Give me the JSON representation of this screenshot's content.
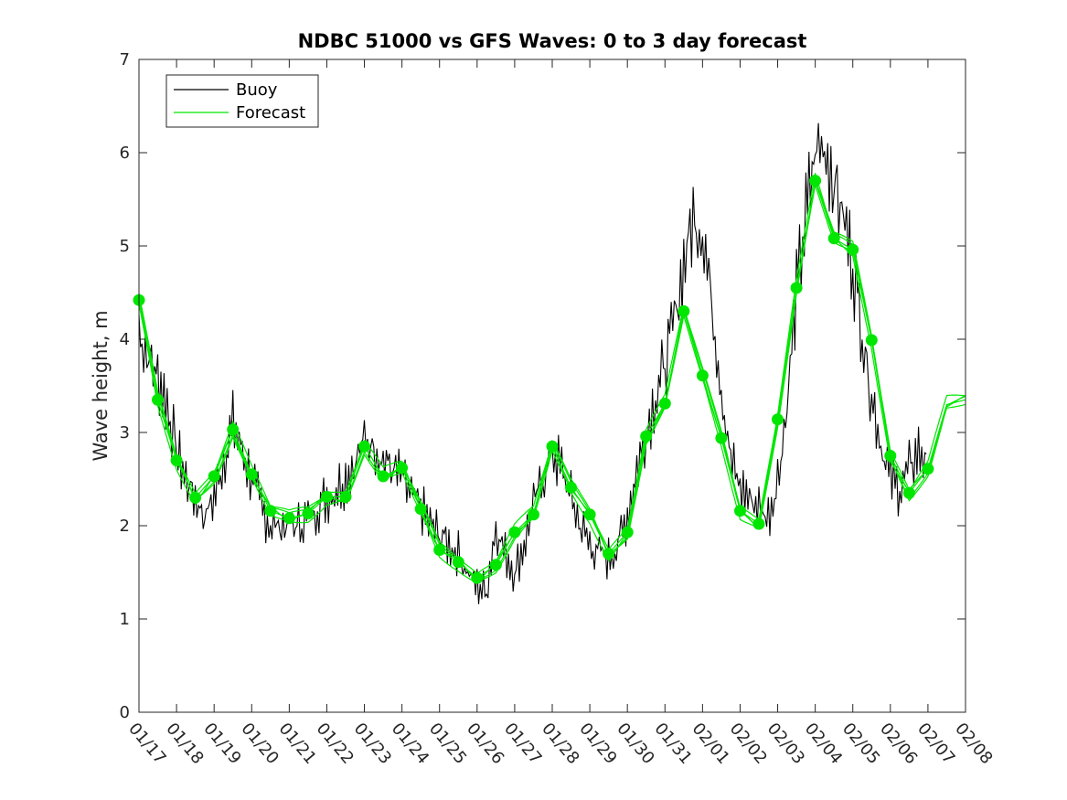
{
  "chart_data": {
    "type": "line",
    "title": "NDBC 51000 vs GFS Waves: 0 to 3 day forecast",
    "xlabel": "",
    "ylabel": "Wave height, m",
    "x_ticks": [
      "01/17",
      "01/18",
      "01/19",
      "01/20",
      "01/21",
      "01/22",
      "01/23",
      "01/24",
      "01/25",
      "01/26",
      "01/27",
      "01/28",
      "01/29",
      "01/30",
      "01/31",
      "02/01",
      "02/02",
      "02/03",
      "02/04",
      "02/05",
      "02/06",
      "02/07",
      "02/08"
    ],
    "xlim": [
      0,
      22
    ],
    "ylim": [
      0,
      7
    ],
    "y_ticks": [
      0,
      1,
      2,
      3,
      4,
      5,
      6,
      7
    ],
    "x_units": "days since 01/17",
    "legend": {
      "position": "top-left",
      "entries": [
        "Buoy",
        "Forecast"
      ]
    },
    "colors": {
      "buoy": "#000000",
      "forecast": "#00e600"
    },
    "series": [
      {
        "name": "Buoy",
        "points": [
          [
            0,
            4.1
          ],
          [
            0.25,
            3.8
          ],
          [
            0.5,
            3.6
          ],
          [
            0.75,
            3.3
          ],
          [
            1,
            2.8
          ],
          [
            1.25,
            2.5
          ],
          [
            1.5,
            2.3
          ],
          [
            1.75,
            2.1
          ],
          [
            2,
            2.3
          ],
          [
            2.25,
            2.7
          ],
          [
            2.5,
            3.1
          ],
          [
            2.75,
            2.8
          ],
          [
            3,
            2.5
          ],
          [
            3.25,
            2.2
          ],
          [
            3.5,
            2.0
          ],
          [
            3.75,
            2.0
          ],
          [
            4,
            2.0
          ],
          [
            4.25,
            2.0
          ],
          [
            4.5,
            2.1
          ],
          [
            4.75,
            2.2
          ],
          [
            5,
            2.3
          ],
          [
            5.25,
            2.4
          ],
          [
            5.5,
            2.5
          ],
          [
            5.75,
            2.7
          ],
          [
            6,
            2.9
          ],
          [
            6.25,
            2.9
          ],
          [
            6.5,
            2.7
          ],
          [
            6.75,
            2.6
          ],
          [
            7,
            2.5
          ],
          [
            7.25,
            2.3
          ],
          [
            7.5,
            2.2
          ],
          [
            7.75,
            2.0
          ],
          [
            8,
            1.9
          ],
          [
            8.25,
            1.8
          ],
          [
            8.5,
            1.7
          ],
          [
            8.75,
            1.5
          ],
          [
            9,
            1.35
          ],
          [
            9.25,
            1.3
          ],
          [
            9.5,
            2.0
          ],
          [
            9.75,
            1.7
          ],
          [
            10,
            1.5
          ],
          [
            10.25,
            1.8
          ],
          [
            10.5,
            2.2
          ],
          [
            10.75,
            2.5
          ],
          [
            11,
            2.8
          ],
          [
            11.25,
            2.6
          ],
          [
            11.5,
            2.3
          ],
          [
            11.75,
            2.0
          ],
          [
            12,
            1.8
          ],
          [
            12.25,
            1.7
          ],
          [
            12.5,
            1.65
          ],
          [
            12.75,
            1.8
          ],
          [
            13,
            2.1
          ],
          [
            13.25,
            2.6
          ],
          [
            13.5,
            3.0
          ],
          [
            13.75,
            3.4
          ],
          [
            14,
            3.7
          ],
          [
            14.25,
            4.2
          ],
          [
            14.5,
            4.8
          ],
          [
            14.75,
            5.3
          ],
          [
            15,
            5.2
          ],
          [
            15.25,
            4.4
          ],
          [
            15.5,
            3.5
          ],
          [
            15.75,
            2.7
          ],
          [
            16,
            2.4
          ],
          [
            16.25,
            2.3
          ],
          [
            16.5,
            2.2
          ],
          [
            16.75,
            2.1
          ],
          [
            17,
            2.5
          ],
          [
            17.25,
            3.3
          ],
          [
            17.5,
            4.5
          ],
          [
            17.75,
            5.3
          ],
          [
            18,
            6.0
          ],
          [
            18.25,
            6.1
          ],
          [
            18.5,
            5.7
          ],
          [
            18.75,
            5.3
          ],
          [
            19,
            4.8
          ],
          [
            19.25,
            4.1
          ],
          [
            19.5,
            3.4
          ],
          [
            19.75,
            2.9
          ],
          [
            20,
            2.5
          ],
          [
            20.25,
            2.4
          ],
          [
            20.5,
            2.6
          ],
          [
            20.75,
            2.8
          ],
          [
            21,
            2.7
          ]
        ]
      },
      {
        "name": "Forecast",
        "points": [
          [
            0,
            4.42
          ],
          [
            0.5,
            3.35
          ],
          [
            1,
            2.7
          ],
          [
            1.5,
            2.3
          ],
          [
            2,
            2.53
          ],
          [
            2.5,
            3.03
          ],
          [
            3,
            2.55
          ],
          [
            3.5,
            2.16
          ],
          [
            4,
            2.08
          ],
          [
            4.5,
            2.13
          ],
          [
            5,
            2.31
          ],
          [
            5.5,
            2.31
          ],
          [
            6,
            2.85
          ],
          [
            6.5,
            2.53
          ],
          [
            7,
            2.62
          ],
          [
            7.5,
            2.18
          ],
          [
            8,
            1.74
          ],
          [
            8.5,
            1.61
          ],
          [
            9,
            1.44
          ],
          [
            9.5,
            1.58
          ],
          [
            10,
            1.93
          ],
          [
            10.5,
            2.12
          ],
          [
            11,
            2.85
          ],
          [
            11.5,
            2.41
          ],
          [
            12,
            2.12
          ],
          [
            12.5,
            1.7
          ],
          [
            13,
            1.93
          ],
          [
            13.5,
            2.96
          ],
          [
            14,
            3.31
          ],
          [
            14.5,
            4.3
          ],
          [
            15,
            3.61
          ],
          [
            15.5,
            2.94
          ],
          [
            16,
            2.16
          ],
          [
            16.5,
            2.02
          ],
          [
            17,
            3.14
          ],
          [
            17.5,
            4.55
          ],
          [
            18,
            5.7
          ],
          [
            18.5,
            5.08
          ],
          [
            19,
            4.96
          ],
          [
            19.5,
            3.99
          ],
          [
            20,
            2.75
          ],
          [
            20.5,
            2.35
          ],
          [
            21,
            2.61
          ],
          [
            21.5,
            3.3
          ],
          [
            22,
            3.35
          ]
        ]
      }
    ]
  }
}
